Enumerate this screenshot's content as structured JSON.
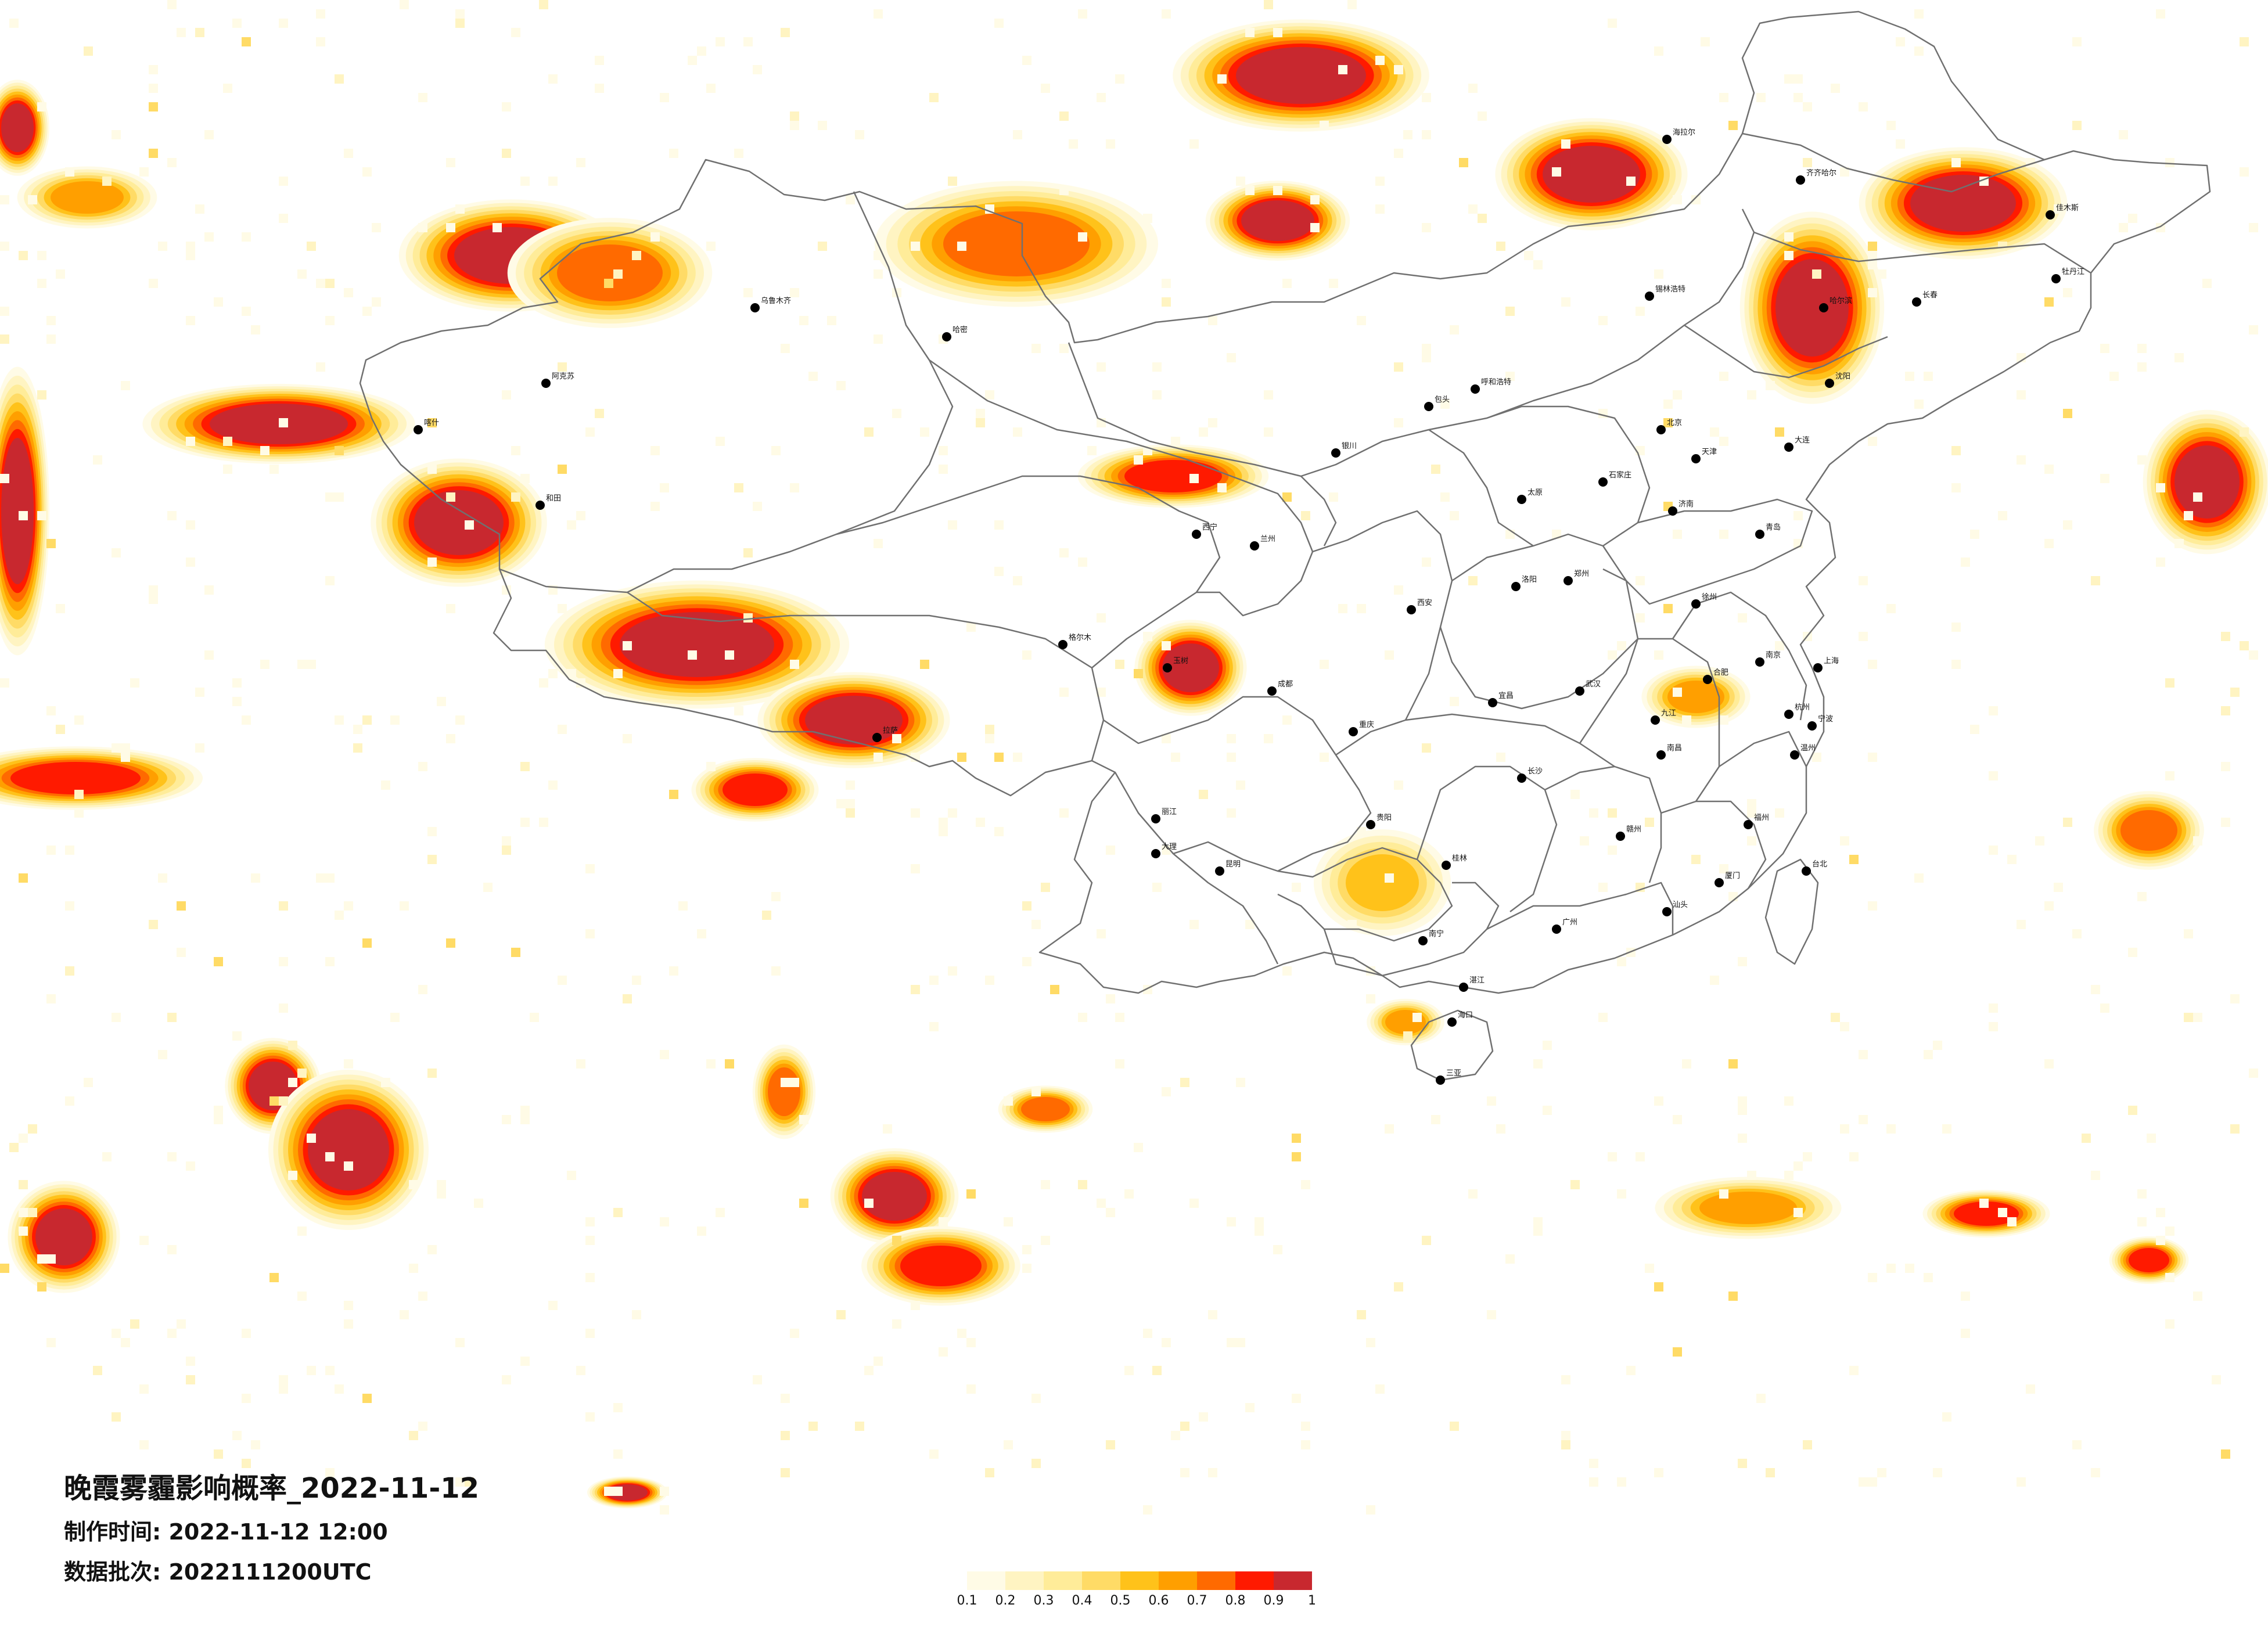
{
  "title": "晚霞雾霾影响概率_2022-11-12",
  "meta": {
    "made_label": "制作时间:",
    "made_value": "2022-11-12 12:00",
    "batch_label": "数据批次:",
    "batch_value": "2022111200UTC"
  },
  "legend": {
    "ticks": [
      "0.1",
      "0.2",
      "0.3",
      "0.4",
      "0.5",
      "0.6",
      "0.7",
      "0.8",
      "0.9",
      "1"
    ],
    "colors": [
      "#fffbe6",
      "#fff4c2",
      "#ffec99",
      "#ffdb66",
      "#ffc21a",
      "#ff9f00",
      "#ff6a00",
      "#ff1a00",
      "#c8282f"
    ]
  },
  "map": {
    "background": "#ffffff",
    "border_color": "#707070",
    "city_color": "#000000"
  },
  "cities": [
    {
      "name": "哈尔滨",
      "id": "c-harbin"
    },
    {
      "name": "长春",
      "id": "c-changchun"
    },
    {
      "name": "沈阳",
      "id": "c-shenyang"
    },
    {
      "name": "北京",
      "id": "c-beijing"
    },
    {
      "name": "天津",
      "id": "c-tianjin"
    },
    {
      "name": "石家庄",
      "id": "c-shijiazhuang"
    },
    {
      "name": "太原",
      "id": "c-taiyuan"
    },
    {
      "name": "呼和浩特",
      "id": "c-hohhot"
    },
    {
      "name": "济南",
      "id": "c-jinan"
    },
    {
      "name": "郑州",
      "id": "c-zhengzhou"
    },
    {
      "name": "西安",
      "id": "c-xian"
    },
    {
      "name": "兰州",
      "id": "c-lanzhou"
    },
    {
      "name": "西宁",
      "id": "c-xining"
    },
    {
      "name": "银川",
      "id": "c-yinchuan"
    },
    {
      "name": "乌鲁木齐",
      "id": "c-urumqi"
    },
    {
      "name": "拉萨",
      "id": "c-lhasa"
    },
    {
      "name": "成都",
      "id": "c-chengdu"
    },
    {
      "name": "重庆",
      "id": "c-chongqing"
    },
    {
      "name": "贵阳",
      "id": "c-guiyang"
    },
    {
      "name": "昆明",
      "id": "c-kunming"
    },
    {
      "name": "南宁",
      "id": "c-nanning"
    },
    {
      "name": "广州",
      "id": "c-guangzhou"
    },
    {
      "name": "长沙",
      "id": "c-changsha"
    },
    {
      "name": "武汉",
      "id": "c-wuhan"
    },
    {
      "name": "南昌",
      "id": "c-nanchang"
    },
    {
      "name": "合肥",
      "id": "c-hefei"
    },
    {
      "name": "南京",
      "id": "c-nanjing"
    },
    {
      "name": "杭州",
      "id": "c-hangzhou"
    },
    {
      "name": "上海",
      "id": "c-shanghai"
    },
    {
      "name": "福州",
      "id": "c-fuzhou"
    },
    {
      "name": "台北",
      "id": "c-taipei"
    },
    {
      "name": "海口",
      "id": "c-haikou"
    },
    {
      "name": "三亚",
      "id": "c-sanya"
    },
    {
      "name": "青岛",
      "id": "c-qingdao"
    },
    {
      "name": "大连",
      "id": "c-dalian"
    },
    {
      "name": "齐齐哈尔",
      "id": "c-qiqihar"
    },
    {
      "name": "喀什",
      "id": "c-kashgar"
    },
    {
      "name": "和田",
      "id": "c-hotan"
    },
    {
      "name": "阿克苏",
      "id": "c-aksu"
    },
    {
      "name": "哈密",
      "id": "c-hami"
    },
    {
      "name": "格尔木",
      "id": "c-golmud"
    },
    {
      "name": "玉树",
      "id": "c-yushu"
    },
    {
      "name": "大理",
      "id": "c-dali"
    },
    {
      "name": "桂林",
      "id": "c-guilin"
    },
    {
      "name": "厦门",
      "id": "c-xiamen"
    },
    {
      "name": "温州",
      "id": "c-wenzhou"
    },
    {
      "name": "宁波",
      "id": "c-ningbo"
    },
    {
      "name": "徐州",
      "id": "c-xuzhou"
    },
    {
      "name": "洛阳",
      "id": "c-luoyang"
    },
    {
      "name": "包头",
      "id": "c-baotou"
    },
    {
      "name": "海拉尔",
      "id": "c-hailar"
    },
    {
      "name": "锡林浩特",
      "id": "c-xilinhot"
    },
    {
      "name": "牡丹江",
      "id": "c-mudanjiang"
    },
    {
      "name": "佳木斯",
      "id": "c-jiamusi"
    },
    {
      "name": "赣州",
      "id": "c-ganzhou"
    },
    {
      "name": "湛江",
      "id": "c-zhanjiang"
    },
    {
      "name": "汕头",
      "id": "c-shantou"
    },
    {
      "name": "丽江",
      "id": "c-lijiang"
    },
    {
      "name": "宜昌",
      "id": "c-yichang"
    },
    {
      "name": "九江",
      "id": "c-jiujiang"
    }
  ]
}
